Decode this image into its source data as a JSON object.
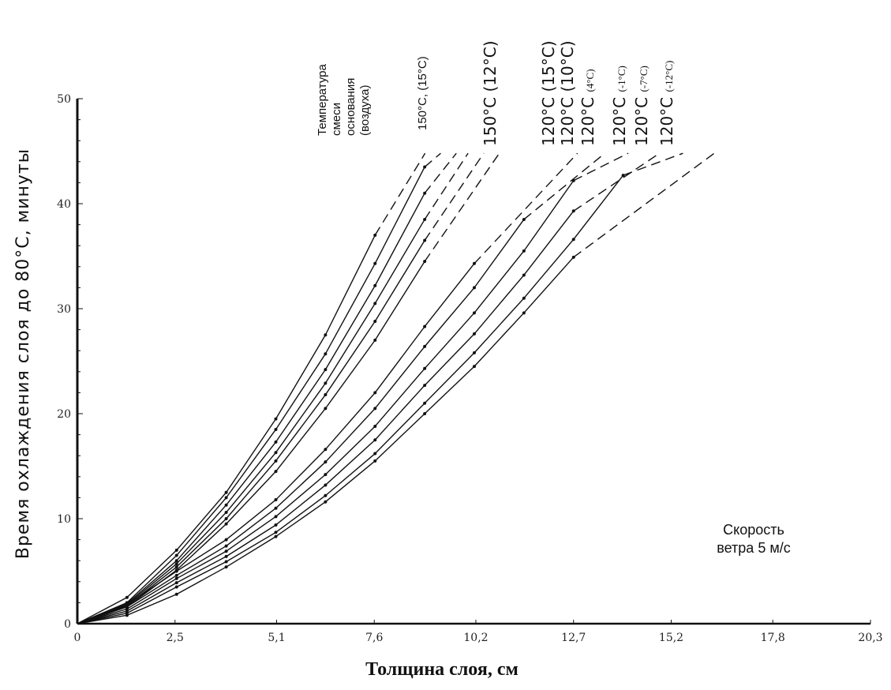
{
  "chart_data": {
    "type": "line",
    "title": "",
    "xlabel": "Толщина слоя, см",
    "ylabel": "Время охлаждения слоя до 80°С, минуты",
    "xlim": [
      0,
      20.3
    ],
    "ylim": [
      0,
      50
    ],
    "x_ticks": [
      0,
      2.5,
      5.1,
      7.6,
      10.2,
      12.7,
      15.2,
      17.8,
      20.3
    ],
    "x_tick_labels": [
      "0",
      "2,5",
      "5,1",
      "7,6",
      "10,2",
      "12,7",
      "15,2",
      "17,8",
      "20,3"
    ],
    "y_ticks": [
      0,
      10,
      20,
      30,
      40,
      50
    ],
    "y_tick_labels": [
      "0",
      "10",
      "20",
      "30",
      "40",
      "50"
    ],
    "legend_header": [
      "Температура",
      "смеси",
      "основания",
      "(воздуха)"
    ],
    "annotation": [
      "Скорость",
      "ветра 5 м/с"
    ],
    "series": [
      {
        "mix": "150°С",
        "base": "(15°С)",
        "x": [
          0,
          1.27,
          2.54,
          3.81,
          5.08,
          6.35,
          7.62
        ],
        "y": [
          0,
          2.5,
          7.0,
          12.5,
          19.5,
          27.5,
          37.0
        ],
        "dashed_to": [
          8.9,
          44.8
        ]
      },
      {
        "mix": "150°С",
        "base": "",
        "x": [
          0,
          1.27,
          2.54,
          3.81,
          5.08,
          6.35,
          7.62,
          8.89
        ],
        "y": [
          0,
          2.0,
          6.5,
          12.0,
          18.5,
          25.7,
          34.3,
          43.5
        ],
        "dashed_to": [
          9.3,
          44.8
        ]
      },
      {
        "mix": "150°С",
        "base": "",
        "x": [
          0,
          1.27,
          2.54,
          3.81,
          5.08,
          6.35,
          7.62,
          8.89
        ],
        "y": [
          0,
          1.9,
          6.0,
          11.3,
          17.3,
          24.2,
          32.2,
          41.0
        ],
        "dashed_to": [
          9.7,
          44.8
        ]
      },
      {
        "mix": "150°С",
        "base": "",
        "x": [
          0,
          1.27,
          2.54,
          3.81,
          5.08,
          6.35,
          7.62,
          8.89
        ],
        "y": [
          0,
          1.8,
          5.7,
          10.6,
          16.3,
          22.9,
          30.5,
          38.5
        ],
        "dashed_to": [
          10.0,
          44.8
        ]
      },
      {
        "mix": "150°С",
        "base": "",
        "x": [
          0,
          1.27,
          2.54,
          3.81,
          5.08,
          6.35,
          7.62,
          8.89
        ],
        "y": [
          0,
          1.7,
          5.4,
          10.0,
          15.5,
          21.8,
          28.8,
          36.5
        ],
        "dashed_to": [
          10.4,
          44.8
        ]
      },
      {
        "mix": "150°С",
        "base": "(12°С)",
        "x": [
          0,
          1.27,
          2.54,
          3.81,
          5.08,
          6.35,
          7.62,
          8.89
        ],
        "y": [
          0,
          1.6,
          5.1,
          9.5,
          14.5,
          20.5,
          27.0,
          34.5
        ],
        "dashed_to": [
          10.8,
          44.8
        ]
      },
      {
        "mix": "120°С",
        "base": "(15°С)",
        "x": [
          0,
          1.27,
          2.54,
          3.81,
          5.08,
          6.35,
          7.62,
          8.89,
          10.16
        ],
        "y": [
          0,
          1.8,
          5.0,
          8.0,
          11.8,
          16.6,
          22.0,
          28.3,
          34.3
        ],
        "dashed_to": [
          12.8,
          44.8
        ]
      },
      {
        "mix": "120°С",
        "base": "(10°С)",
        "x": [
          0,
          1.27,
          2.54,
          3.81,
          5.08,
          6.35,
          7.62,
          8.89,
          10.16,
          11.43
        ],
        "y": [
          0,
          1.6,
          4.6,
          7.4,
          11.0,
          15.4,
          20.5,
          26.4,
          32.0,
          38.5
        ],
        "dashed_to": [
          13.5,
          44.8
        ]
      },
      {
        "mix": "120°С",
        "base": "(4°С)",
        "x": [
          0,
          1.27,
          2.54,
          3.81,
          5.08,
          6.35,
          7.62,
          8.89,
          10.16,
          11.43,
          12.7
        ],
        "y": [
          0,
          1.4,
          4.3,
          6.9,
          10.2,
          14.2,
          18.8,
          24.3,
          29.6,
          35.5,
          42.2
        ],
        "dashed_to": [
          14.1,
          44.8
        ]
      },
      {
        "mix": "120°С",
        "base": "(-1°С)",
        "x": [
          0,
          1.27,
          2.54,
          3.81,
          5.08,
          6.35,
          7.62,
          8.89,
          10.16,
          11.43,
          12.7
        ],
        "y": [
          0,
          1.2,
          3.9,
          6.4,
          9.4,
          13.2,
          17.5,
          22.7,
          27.6,
          33.2,
          39.3
        ],
        "dashed_to": [
          14.9,
          44.8
        ]
      },
      {
        "mix": "120°С",
        "base": "(-7°С)",
        "x": [
          0,
          1.27,
          2.54,
          3.81,
          5.08,
          6.35,
          7.62,
          8.89,
          10.16,
          11.43,
          12.7,
          13.97
        ],
        "y": [
          0,
          1.0,
          3.5,
          5.9,
          8.7,
          12.2,
          16.2,
          21.0,
          25.8,
          31.0,
          36.6,
          42.7
        ],
        "dashed_to": [
          15.5,
          44.8
        ]
      },
      {
        "mix": "120°С",
        "base": "(-12°С)",
        "x": [
          0,
          1.27,
          2.54,
          3.81,
          5.08,
          6.35,
          7.62,
          8.89,
          10.16,
          11.43,
          12.7
        ],
        "y": [
          0,
          0.8,
          2.8,
          5.4,
          8.3,
          11.6,
          15.5,
          20.0,
          24.5,
          29.6,
          34.9
        ],
        "dashed_to": [
          16.3,
          44.8
        ]
      }
    ],
    "grid": false,
    "legend": "rotated labels at top of curves"
  }
}
